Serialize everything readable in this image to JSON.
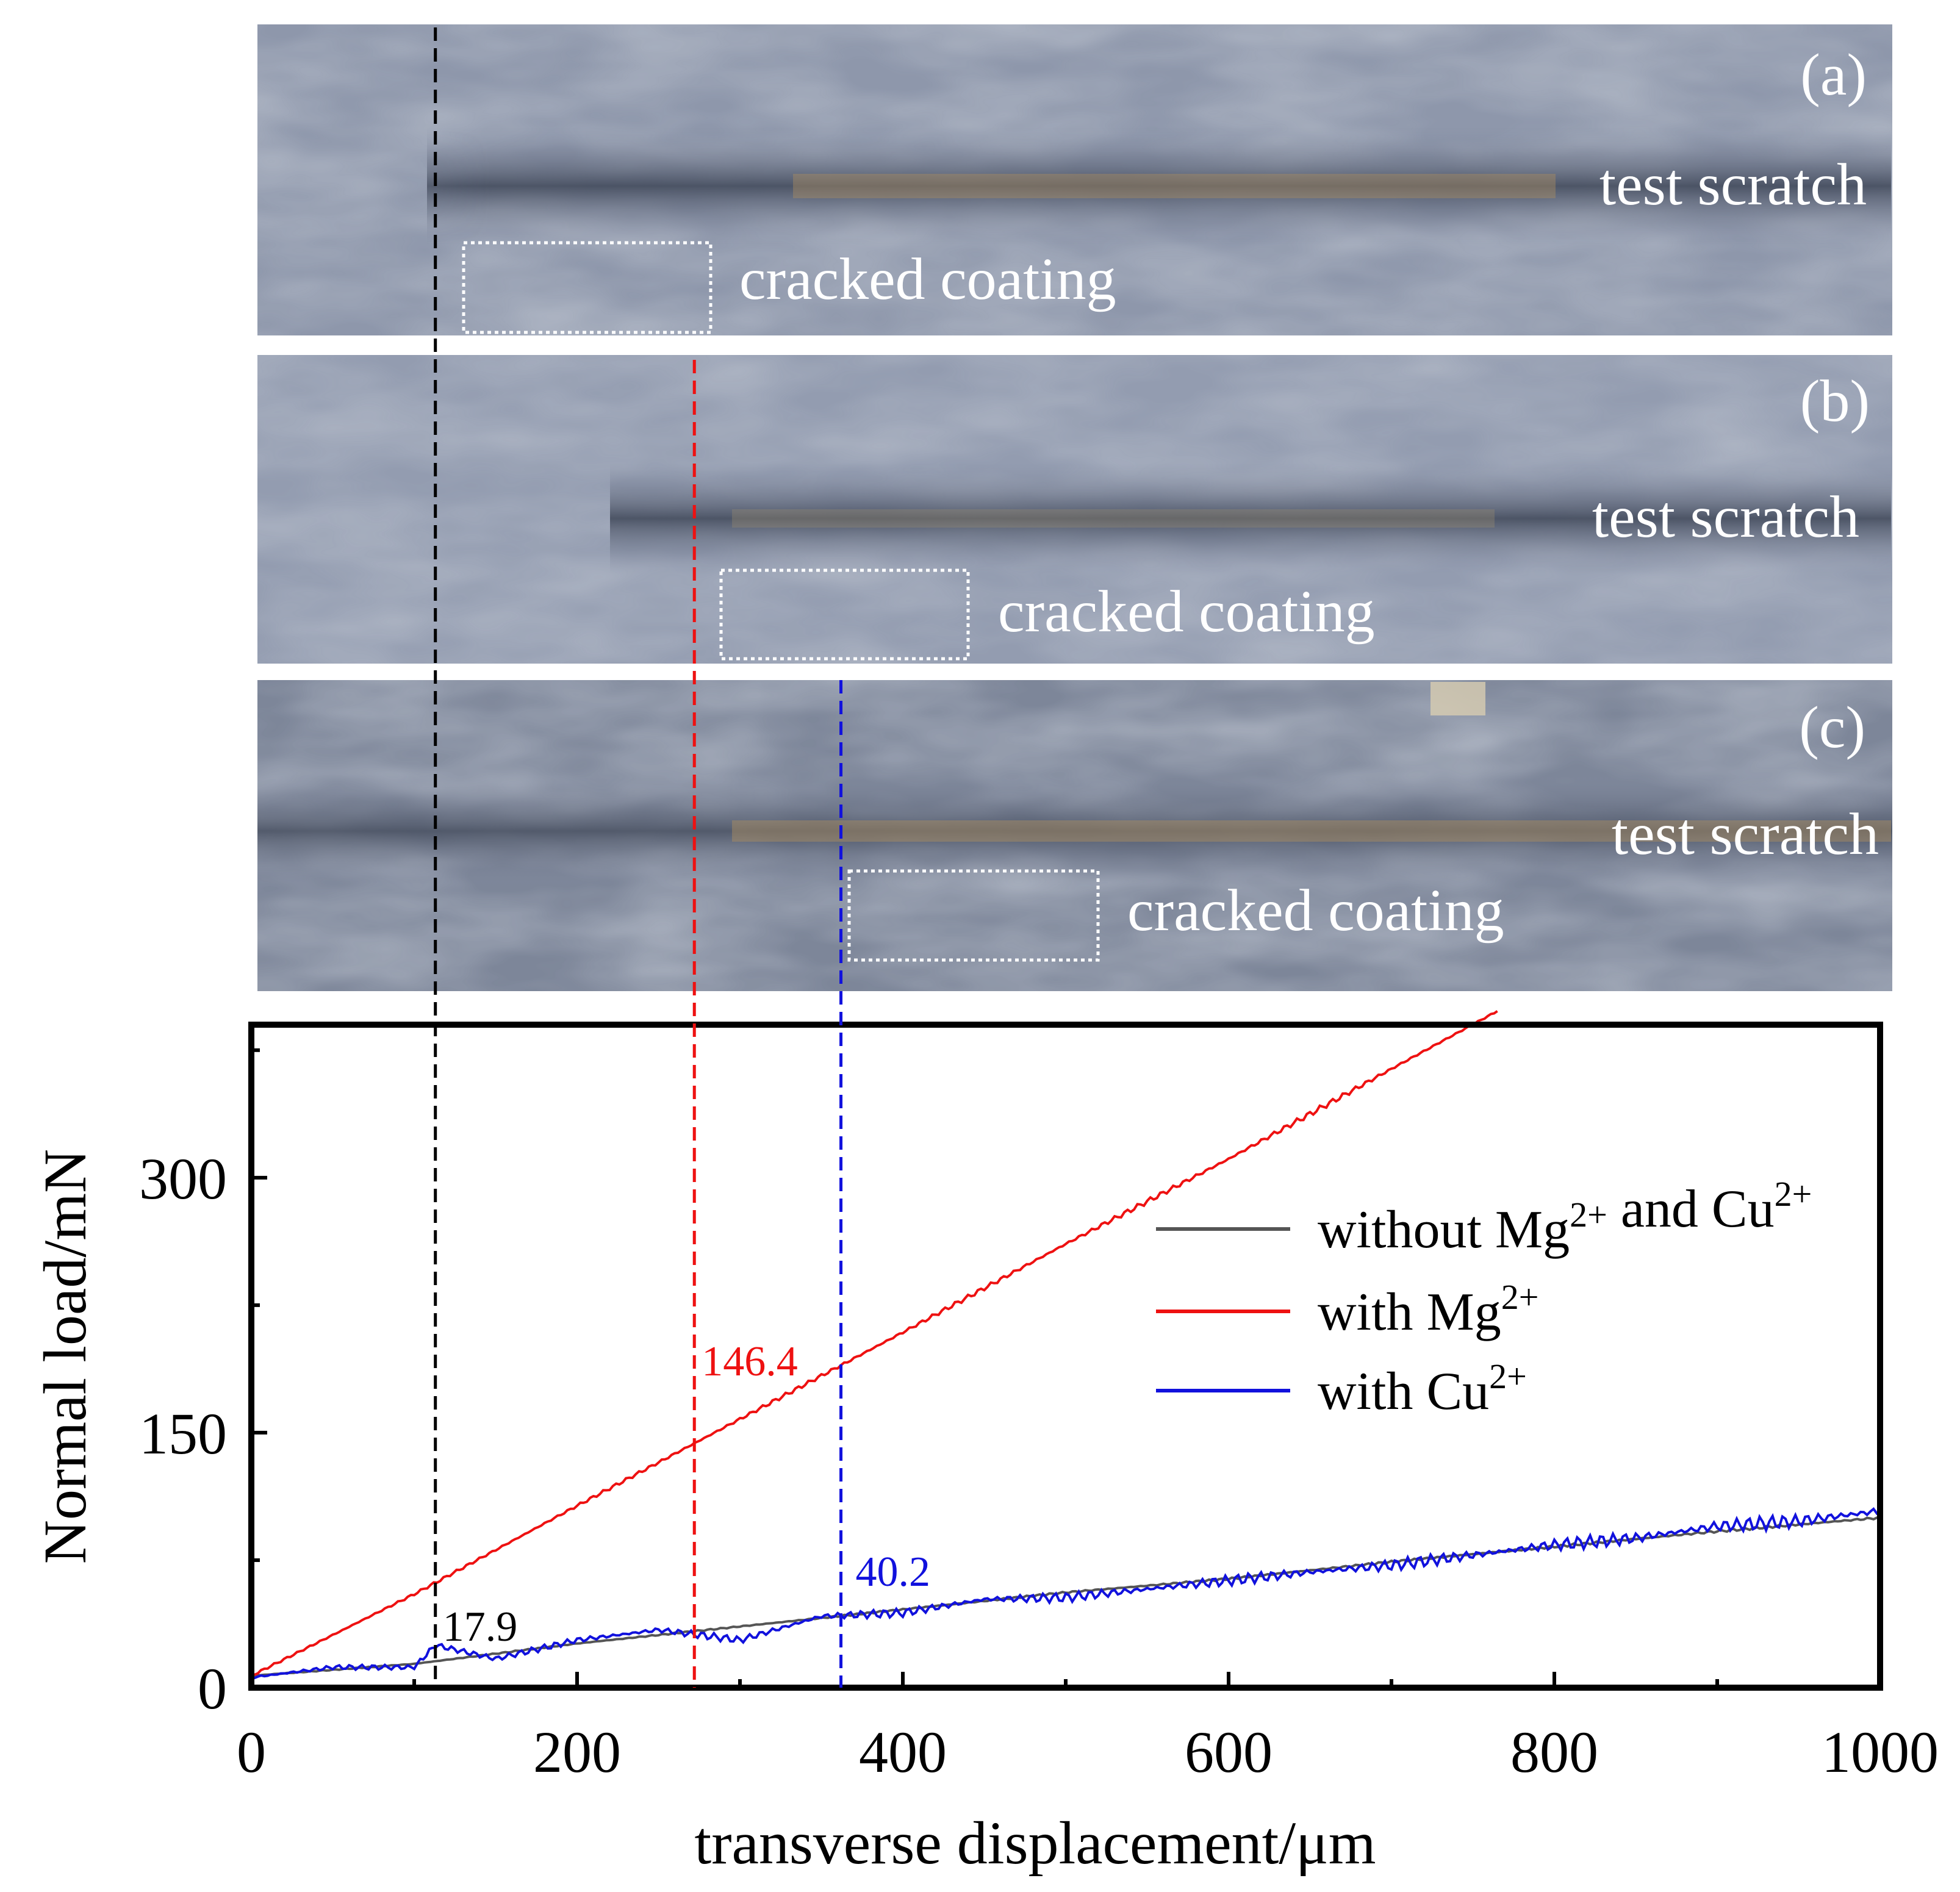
{
  "panels": [
    {
      "tag": "(a)",
      "track_label": "test scratch",
      "defect_label": "cracked coating"
    },
    {
      "tag": "(b)",
      "track_label": "test scratch",
      "defect_label": "cracked coating"
    },
    {
      "tag": "(c)",
      "track_label": "test scratch",
      "defect_label": "cracked coating"
    }
  ],
  "chart_data": {
    "type": "line",
    "title": "",
    "xlabel": "transverse displacement/μm",
    "ylabel": "Normal load/mN",
    "xlim": [
      0,
      1000
    ],
    "ylim": [
      0,
      390
    ],
    "x_ticks": [
      0,
      200,
      400,
      600,
      800,
      1000
    ],
    "y_ticks": [
      0,
      150,
      300
    ],
    "grid": false,
    "legend": {
      "position": "right",
      "entries": [
        {
          "base": "without Mg",
          "sup1": "2+",
          "mid": " and Cu",
          "sup2": "2+",
          "color": "#555555"
        },
        {
          "base": "with Mg",
          "sup1": "2+",
          "mid": "",
          "sup2": "",
          "color": "#ee1111"
        },
        {
          "base": "with Cu",
          "sup1": "2+",
          "mid": "",
          "sup2": "",
          "color": "#1111dd"
        }
      ]
    },
    "series": [
      {
        "color": "#555555",
        "x": [
          0,
          100,
          200,
          300,
          400,
          500,
          600,
          700,
          800,
          900,
          1000
        ],
        "y": [
          7,
          14,
          26,
          36,
          46,
          56,
          64,
          74,
          83,
          92,
          100
        ]
      },
      {
        "color": "#ee1111",
        "x": [
          0,
          100,
          200,
          300,
          400,
          500,
          600,
          700,
          765
        ],
        "y": [
          7,
          55,
          107,
          158,
          209,
          261,
          311,
          364,
          398
        ]
      },
      {
        "color": "#1111dd",
        "x": [
          0,
          50,
          100,
          113,
          150,
          200,
          250,
          300,
          350,
          400,
          450,
          500,
          550,
          600,
          650,
          700,
          750,
          800,
          850,
          900,
          950,
          1000
        ],
        "y": [
          6,
          12,
          12,
          25,
          17,
          28,
          34,
          28,
          42,
          44,
          52,
          53,
          58,
          63,
          68,
          72,
          78,
          84,
          88,
          95,
          98,
          104
        ]
      }
    ],
    "critical_loads": [
      {
        "x": 113,
        "value": "17.9",
        "color": "#000000"
      },
      {
        "x": 272,
        "value": "146.4",
        "color": "#ee1111"
      },
      {
        "x": 362,
        "value": "40.2",
        "color": "#1111dd"
      }
    ]
  }
}
